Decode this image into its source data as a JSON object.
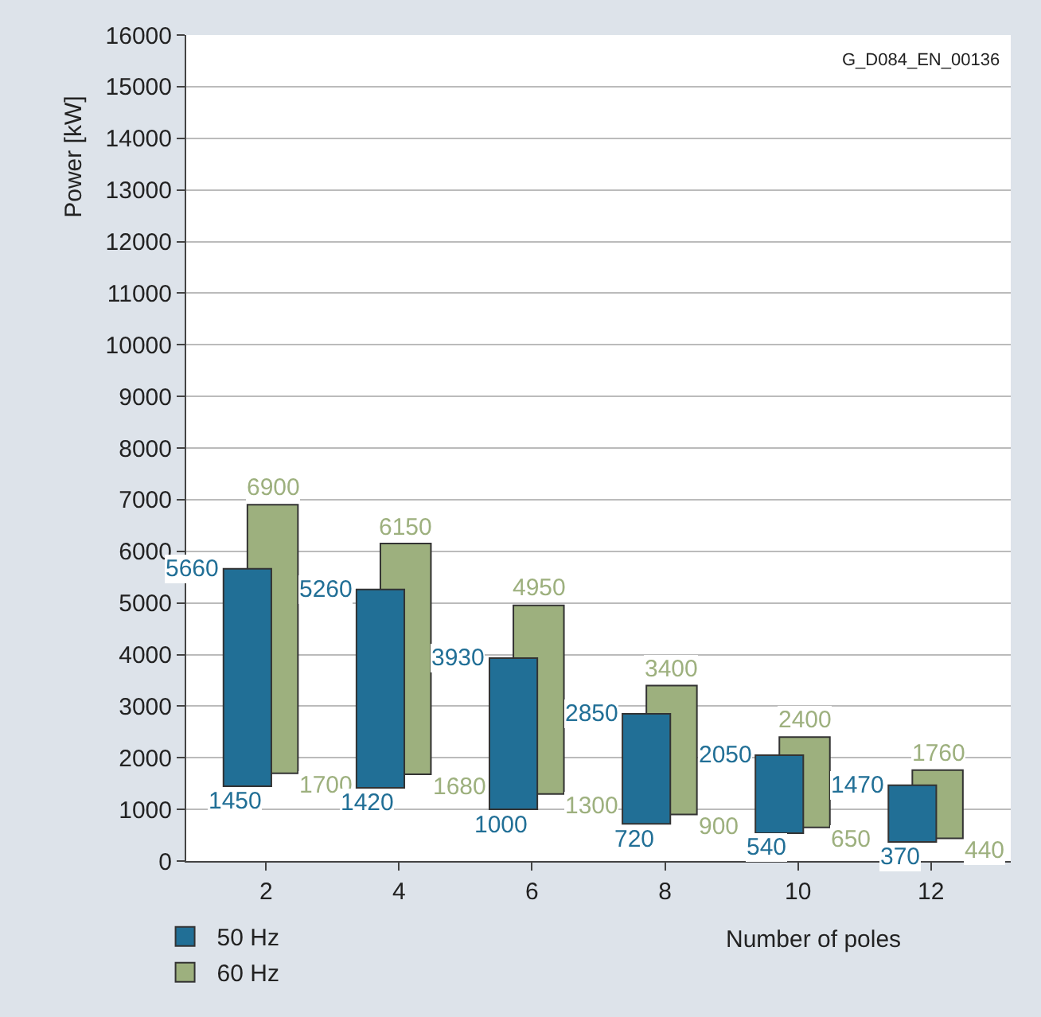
{
  "chart_data": {
    "type": "bar",
    "xlabel": "Number of poles",
    "ylabel": "Power [kW]",
    "categories": [
      "2",
      "4",
      "6",
      "8",
      "10",
      "12"
    ],
    "series": [
      {
        "name": "50 Hz",
        "color": "#216f96",
        "base": [
          1450,
          1420,
          1000,
          720,
          540,
          370
        ],
        "values": [
          4210,
          3840,
          2930,
          2130,
          1510,
          1100
        ]
      },
      {
        "name": "60 Hz",
        "color": "#9db07e",
        "base": [
          1700,
          1680,
          1300,
          900,
          650,
          440
        ],
        "values": [
          5200,
          4470,
          3650,
          2500,
          1750,
          1320
        ]
      }
    ],
    "ylim": [
      0,
      16000
    ],
    "yticks": [
      0,
      1000,
      2000,
      3000,
      4000,
      5000,
      6000,
      7000,
      8000,
      9000,
      10000,
      11000,
      12000,
      13000,
      14000,
      15000,
      16000
    ],
    "grid": "y",
    "legend": "bottom left",
    "annotations": [
      "G_D084_EN_00136",
      {
        "text": "5660",
        "x": "2",
        "y": 5660
      },
      {
        "text": "1450",
        "x": "2",
        "y": 1450
      },
      {
        "text": "6900",
        "x": "2",
        "y": 6900
      },
      {
        "text": "1700",
        "x": "2",
        "y": 1700
      },
      {
        "text": "5260",
        "x": "4",
        "y": 5260
      },
      {
        "text": "1420",
        "x": "4",
        "y": 1420
      },
      {
        "text": "6150",
        "x": "4",
        "y": 6150
      },
      {
        "text": "1680",
        "x": "4",
        "y": 1680
      },
      {
        "text": "3930",
        "x": "6",
        "y": 3930
      },
      {
        "text": "1000",
        "x": "6",
        "y": 1000
      },
      {
        "text": "4950",
        "x": "6",
        "y": 4950
      },
      {
        "text": "1300",
        "x": "6",
        "y": 1300
      },
      {
        "text": "2850",
        "x": "8",
        "y": 2850
      },
      {
        "text": "720",
        "x": "8",
        "y": 720
      },
      {
        "text": "3400",
        "x": "8",
        "y": 3400
      },
      {
        "text": "900",
        "x": "8",
        "y": 900
      },
      {
        "text": "2050",
        "x": "10",
        "y": 2050
      },
      {
        "text": "540",
        "x": "10",
        "y": 540
      },
      {
        "text": "2400",
        "x": "10",
        "y": 2400
      },
      {
        "text": "650",
        "x": "10",
        "y": 650
      },
      {
        "text": "1470",
        "x": "12",
        "y": 1470
      },
      {
        "text": "370",
        "x": "12",
        "y": 370
      },
      {
        "text": "1760",
        "x": "12",
        "y": 1760
      },
      {
        "text": "440",
        "x": "12",
        "y": 440
      }
    ]
  }
}
